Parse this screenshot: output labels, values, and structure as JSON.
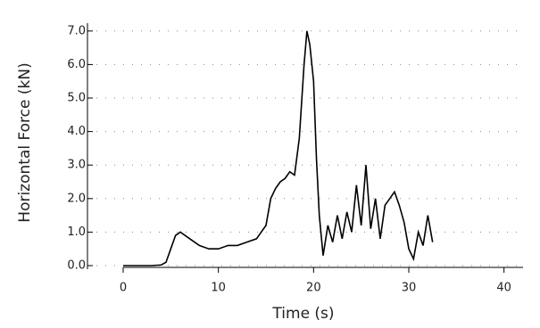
{
  "chart_data": {
    "type": "line",
    "x_label": "Time (s)",
    "y_label": "Horizontal Force (kN)",
    "x": [
      0,
      1,
      2,
      3,
      4,
      4.5,
      5,
      5.5,
      6,
      7,
      8,
      9,
      10,
      11,
      12,
      13,
      14,
      15,
      15.5,
      16,
      16.5,
      17,
      17.5,
      18,
      18.5,
      19,
      19.3,
      19.6,
      20,
      20.3,
      20.6,
      21,
      21.5,
      22,
      22.5,
      23,
      23.5,
      24,
      24.5,
      25,
      25.5,
      26,
      26.5,
      27,
      27.5,
      28,
      28.5,
      29,
      29.5,
      30,
      30.5,
      31,
      31.5,
      32,
      32.5
    ],
    "series": [
      {
        "color": "#000000",
        "values": [
          0,
          0,
          0,
          0,
          0.02,
          0.1,
          0.5,
          0.9,
          1.0,
          0.8,
          0.6,
          0.5,
          0.5,
          0.6,
          0.6,
          0.7,
          0.8,
          1.2,
          2.0,
          2.3,
          2.5,
          2.6,
          2.8,
          2.7,
          3.8,
          6.0,
          7.0,
          6.6,
          5.5,
          3.2,
          1.5,
          0.3,
          1.2,
          0.7,
          1.5,
          0.8,
          1.6,
          1.0,
          2.4,
          1.2,
          3.0,
          1.1,
          2.0,
          0.8,
          1.8,
          2.0,
          2.2,
          1.8,
          1.3,
          0.5,
          0.2,
          1.0,
          0.6,
          1.5,
          0.7
        ]
      }
    ],
    "xlim": [
      0,
      42
    ],
    "xticks": [
      0,
      10,
      20,
      30,
      40
    ],
    "ylim": [
      0,
      7.5
    ],
    "yticks": [
      {
        "value": 0,
        "label": "0.0"
      },
      {
        "value": 1,
        "label": "1.0"
      },
      {
        "value": 2,
        "label": "2.0"
      },
      {
        "value": 3,
        "label": "3.0"
      },
      {
        "value": 4,
        "label": "4.0"
      },
      {
        "value": 5,
        "label": "5.0"
      },
      {
        "value": 6,
        "label": "6.0"
      },
      {
        "value": 7,
        "label": "7.0"
      }
    ],
    "grid": true
  }
}
